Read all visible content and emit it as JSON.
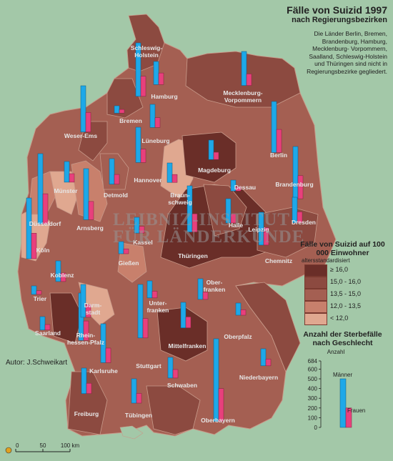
{
  "title": "Fälle von Suizid 1997",
  "subtitle": "nach Regierungsbezirken",
  "note": "Die Länder Berlin, Bremen, Brandenburg, Hamburg, Mecklenburg- Vorpommern, Saalland, Schleswig-Holstein und Thüringen sind nicht in Regierungsbezirke gegliedert.",
  "watermark_line1": "LEIBNIZ-INSTITUT",
  "watermark_line2": "FÜR LÄNDERKUNDE",
  "author": "Autor:  J.Schweikart",
  "colors": {
    "background": "#a3c8a8",
    "class_ge16": "#6a2e28",
    "class_15_16": "#8c4a40",
    "class_135_15": "#a45f52",
    "class_12_135": "#c8806c",
    "class_lt12": "#e0a890",
    "bar_men": "#1ea8e8",
    "bar_women": "#e8407c",
    "border": "#c89a8a",
    "water": "#a3c8a8"
  },
  "legend": {
    "title": "Fälle von Suizid auf 100 000 Einwohner",
    "subtitle": "altersstandardisiert",
    "classes": [
      {
        "label": "≥ 16,0",
        "color_key": "class_ge16"
      },
      {
        "label": "15,0 - 16,0",
        "color_key": "class_15_16"
      },
      {
        "label": "13,5 - 15,0",
        "color_key": "class_135_15"
      },
      {
        "label": "12,0 - 13,5",
        "color_key": "class_12_135"
      },
      {
        "label": "< 12,0",
        "color_key": "class_lt12"
      }
    ]
  },
  "sex_legend": {
    "title": "Anzahl der Sterbefälle nach Geschlecht",
    "axis_label": "Anzahl",
    "ticks": [
      "684",
      "600",
      "500",
      "400",
      "300",
      "200",
      "100",
      "0"
    ],
    "men_label": "Männer",
    "women_label": "Frauen",
    "example_men": 500,
    "example_women": 200
  },
  "scale": {
    "labels": [
      "0",
      "50",
      "100 km"
    ]
  },
  "regions": [
    {
      "name": "Schleswig-Holstein",
      "line1": "Schleswig-",
      "line2": "Holstein",
      "men": 440,
      "women": 165
    },
    {
      "name": "Hamburg",
      "line1": "Hamburg",
      "line2": "",
      "men": 190,
      "women": 95
    },
    {
      "name": "Mecklenburg-Vorpommern",
      "line1": "Mecklenburg-",
      "line2": "Vorpommern",
      "men": 280,
      "women": 95
    },
    {
      "name": "Bremen",
      "line1": "Bremen",
      "line2": "",
      "men": 60,
      "women": 30
    },
    {
      "name": "Weser-Ems",
      "line1": "Weser-Ems",
      "line2": "",
      "men": 380,
      "women": 160
    },
    {
      "name": "Lüneburg",
      "line1": "Lüneburg",
      "line2": "",
      "men": 190,
      "women": 80
    },
    {
      "name": "Berlin",
      "line1": "Berlin",
      "line2": "",
      "men": 420,
      "women": 190
    },
    {
      "name": "Magdeburg",
      "line1": "Magdeburg",
      "line2": "",
      "men": 160,
      "women": 60
    },
    {
      "name": "Hannover",
      "line1": "Hannover",
      "line2": "",
      "men": 290,
      "women": 110
    },
    {
      "name": "Brandenburg",
      "line1": "Brandenburg",
      "line2": "",
      "men": 430,
      "women": 190
    },
    {
      "name": "Münster",
      "line1": "Münster",
      "line2": "",
      "men": 170,
      "women": 70
    },
    {
      "name": "Detmold",
      "line1": "Detmold",
      "line2": "",
      "men": 210,
      "women": 80
    },
    {
      "name": "Braunschweig",
      "line1": "Braun-",
      "line2": "schweig",
      "men": 160,
      "women": 65
    },
    {
      "name": "Dessau",
      "line1": "Dessau",
      "line2": "",
      "men": 90,
      "women": 35
    },
    {
      "name": "Düsseldorf",
      "line1": "Düsseldorf",
      "line2": "",
      "men": 580,
      "women": 250
    },
    {
      "name": "Arnsberg",
      "line1": "Arnsberg",
      "line2": "",
      "men": 420,
      "women": 150
    },
    {
      "name": "Halle",
      "line1": "Halle",
      "line2": "",
      "men": 200,
      "women": 75
    },
    {
      "name": "Leipzig",
      "line1": "Leipzig",
      "line2": "",
      "men": 200,
      "women": 80
    },
    {
      "name": "Dresden",
      "line1": "Dresden",
      "line2": "",
      "men": 210,
      "women": 90
    },
    {
      "name": "Köln",
      "line1": "Köln",
      "line2": "",
      "men": 500,
      "women": 210
    },
    {
      "name": "Kassel",
      "line1": "Kassel",
      "line2": "",
      "men": 130,
      "women": 55
    },
    {
      "name": "Thüringen",
      "line1": "Thüringen",
      "line2": "",
      "men": 380,
      "women": 150
    },
    {
      "name": "Gießen",
      "line1": "Gießen",
      "line2": "",
      "men": 100,
      "women": 40
    },
    {
      "name": "Chemnitz",
      "line1": "Chemnitz",
      "line2": "",
      "men": 270,
      "women": 110
    },
    {
      "name": "Koblenz",
      "line1": "Koblenz",
      "line2": "",
      "men": 170,
      "women": 70
    },
    {
      "name": "Trier",
      "line1": "Trier",
      "line2": "",
      "men": 70,
      "women": 30
    },
    {
      "name": "Darmstadt",
      "line1": "Darm-",
      "line2": "stadt",
      "men": 390,
      "women": 160
    },
    {
      "name": "Unterfranken",
      "line1": "Unter-",
      "line2": "franken",
      "men": 140,
      "women": 55
    },
    {
      "name": "Oberfranken",
      "line1": "Ober-",
      "line2": "franken",
      "men": 170,
      "women": 60
    },
    {
      "name": "Saarland",
      "line1": "Saarland",
      "line2": "",
      "men": 110,
      "women": 45
    },
    {
      "name": "Rheinhessen-Pfalz",
      "line1": "Rhein-",
      "line2": "hessen-Pfalz",
      "men": 270,
      "women": 105
    },
    {
      "name": "Mittelfranken",
      "line1": "Mittelfranken",
      "line2": "",
      "men": 210,
      "women": 90
    },
    {
      "name": "Oberpfalz",
      "line1": "Oberpfalz",
      "line2": "",
      "men": 100,
      "women": 45
    },
    {
      "name": "Karlsruhe",
      "line1": "Karlsruhe",
      "line2": "",
      "men": 320,
      "women": 120
    },
    {
      "name": "Stuttgart",
      "line1": "Stuttgart",
      "line2": "",
      "men": 440,
      "women": 160
    },
    {
      "name": "Niederbayern",
      "line1": "Niederbayern",
      "line2": "",
      "men": 140,
      "women": 55
    },
    {
      "name": "Schwaben",
      "line1": "Schwaben",
      "line2": "",
      "men": 170,
      "women": 70
    },
    {
      "name": "Freiburg",
      "line1": "Freiburg",
      "line2": "",
      "men": 210,
      "women": 85
    },
    {
      "name": "Tübingen",
      "line1": "Tübingen",
      "line2": "",
      "men": 200,
      "women": 80
    },
    {
      "name": "Oberbayern",
      "line1": "Oberbayern",
      "line2": "",
      "men": 680,
      "women": 270
    }
  ]
}
